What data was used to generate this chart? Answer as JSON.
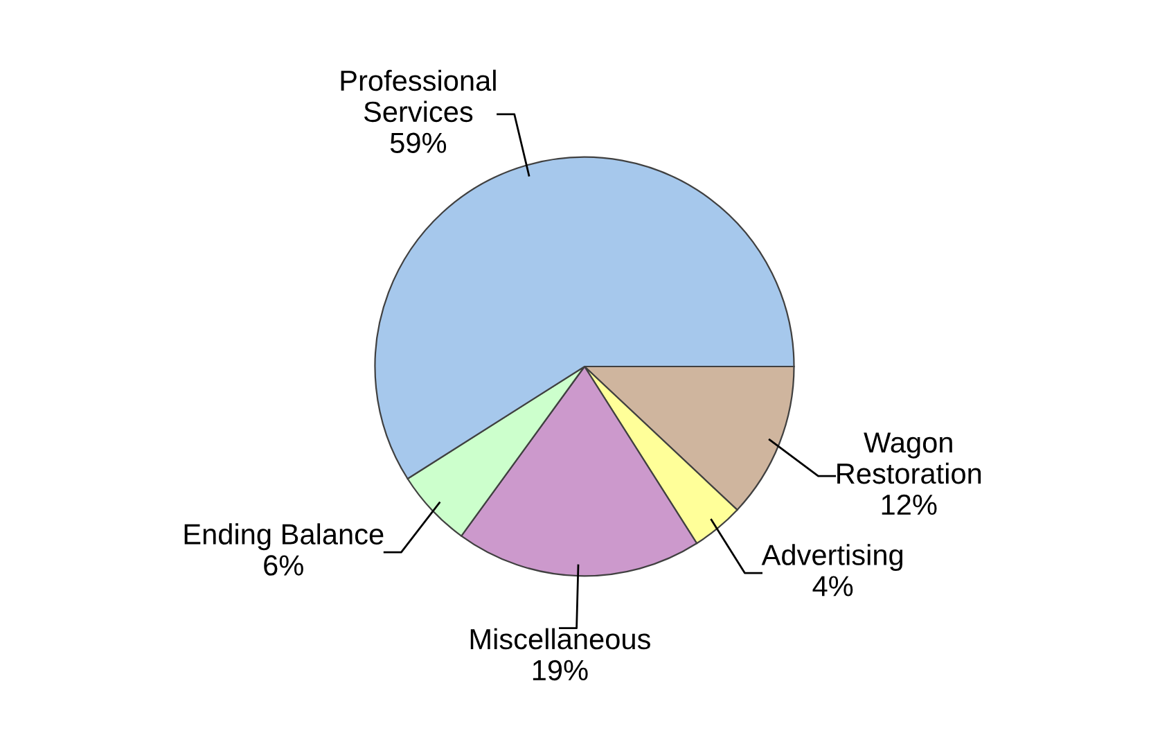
{
  "chart_data": {
    "type": "pie",
    "categories": [
      "Wagon\nRestoration",
      "Advertising",
      "Miscellaneous",
      "Ending Balance",
      "Professional\nServices"
    ],
    "values": [
      12,
      4,
      19,
      6,
      59
    ],
    "value_labels": [
      "12%",
      "4%",
      "19%",
      "6%",
      "59%"
    ],
    "colors": [
      "#cfb59e",
      "#ffff99",
      "#cc99cc",
      "#ccffcc",
      "#a6c8ec"
    ]
  }
}
